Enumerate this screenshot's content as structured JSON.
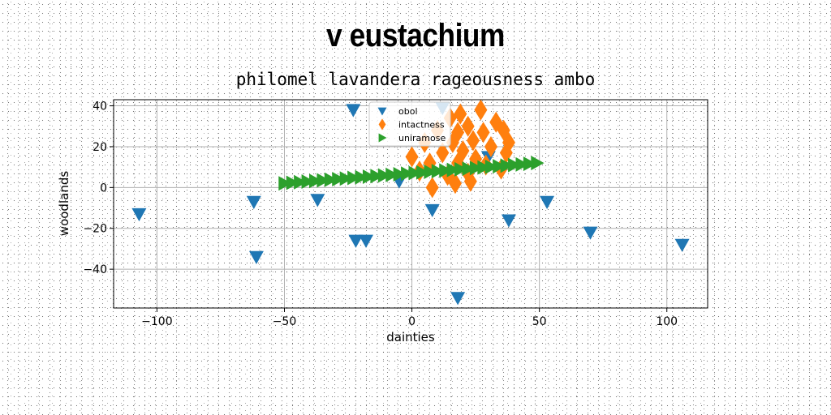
{
  "chart_data": {
    "type": "scatter",
    "title": "v eustachium",
    "subtitle": "philomel lavandera rageousness ambo",
    "xlabel": "dainties",
    "ylabel": "woodlands",
    "xlim": [
      -117,
      116
    ],
    "ylim": [
      -59,
      43
    ],
    "xticks": [
      -100,
      -50,
      0,
      50,
      100
    ],
    "yticks": [
      -40,
      -20,
      0,
      20,
      40
    ],
    "grid": true,
    "legend_position": "top-center",
    "series": [
      {
        "name": "obol",
        "marker": "triangle-down",
        "color": "#1f77b4",
        "x": [
          -107,
          -62,
          -61,
          -37,
          -23,
          -22,
          -18,
          -5,
          8,
          12,
          18,
          30,
          38,
          53,
          70,
          106
        ],
        "y": [
          -13,
          -7,
          -34,
          -6,
          38,
          -26,
          -26,
          3,
          -11,
          39,
          -54,
          15,
          -16,
          -7,
          -22,
          -28
        ]
      },
      {
        "name": "intactness",
        "marker": "diamond",
        "color": "#ff7f0e",
        "x": [
          0,
          3,
          5,
          7,
          8,
          10,
          12,
          14,
          15,
          16,
          17,
          18,
          18,
          19,
          20,
          22,
          22,
          23,
          24,
          25,
          27,
          28,
          29,
          31,
          33,
          35,
          36,
          37,
          38
        ],
        "y": [
          15,
          8,
          22,
          12,
          0,
          28,
          17,
          6,
          34,
          22,
          2,
          12,
          27,
          36,
          18,
          7,
          30,
          3,
          23,
          14,
          38,
          27,
          11,
          20,
          32,
          9,
          28,
          17,
          22
        ]
      },
      {
        "name": "uniramose",
        "marker": "triangle-right",
        "color": "#2ca02c",
        "x": [
          -50,
          -47,
          -44,
          -41,
          -38,
          -35,
          -32,
          -29,
          -26,
          -23,
          -20,
          -17,
          -14,
          -11,
          -8,
          -5,
          -2,
          1,
          4,
          7,
          10,
          13,
          16,
          19,
          22,
          25,
          28,
          31,
          34,
          37,
          40,
          43,
          46,
          49
        ],
        "y": [
          2,
          2.3,
          2.6,
          2.9,
          3.2,
          3.5,
          3.8,
          4.1,
          4.4,
          4.7,
          5,
          5.3,
          5.6,
          5.9,
          6.2,
          6.5,
          6.8,
          7.1,
          7.4,
          7.7,
          8,
          8.3,
          8.6,
          8.9,
          9.2,
          9.5,
          9.8,
          10.1,
          10.4,
          10.7,
          11,
          11.3,
          11.6,
          12
        ]
      }
    ]
  }
}
